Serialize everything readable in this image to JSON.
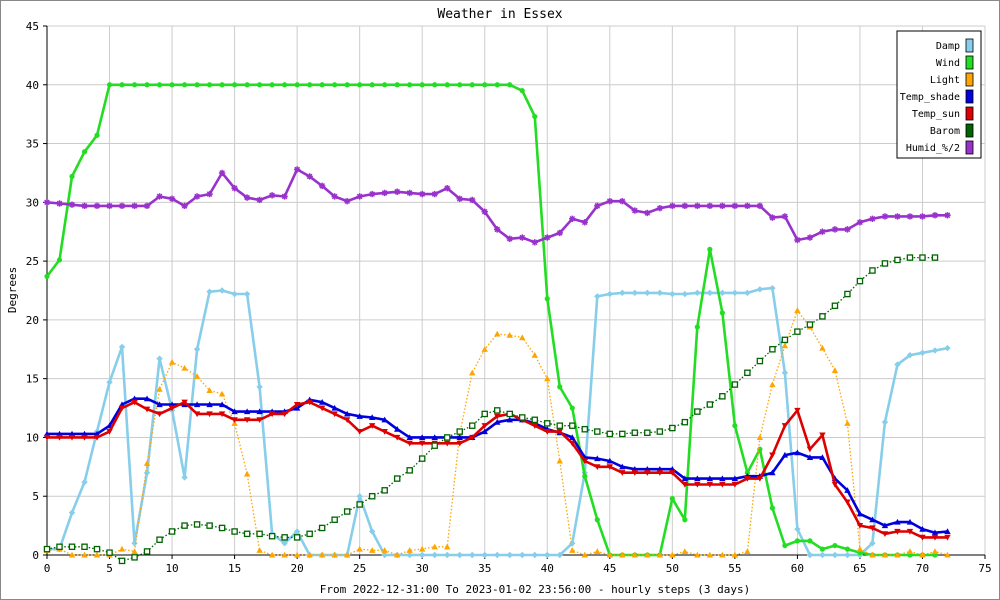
{
  "chart_data": {
    "type": "line",
    "title": "Weather in Essex",
    "xlabel": "From 2022-12-31:00 To 2023-01-02 23:56:00 - hourly steps (3 days)",
    "ylabel": "Degrees",
    "xlim": [
      0,
      75
    ],
    "ylim": [
      0,
      45
    ],
    "x_ticks": [
      0,
      5,
      10,
      15,
      20,
      25,
      30,
      35,
      40,
      45,
      50,
      55,
      60,
      65,
      70,
      75
    ],
    "y_ticks": [
      0,
      5,
      10,
      15,
      20,
      25,
      30,
      35,
      40,
      45
    ],
    "grid": true,
    "legend_position": "top-right",
    "series": [
      {
        "name": "Damp",
        "color": "#87CEEB",
        "marker": "diamond",
        "style": "solid",
        "values": [
          0.5,
          0.5,
          3.6,
          6.2,
          10.5,
          14.7,
          17.7,
          1.0,
          7.0,
          16.7,
          12.3,
          6.6,
          17.5,
          22.4,
          22.5,
          22.2,
          22.2,
          14.3,
          1.8,
          1.0,
          2.0,
          0.0,
          0.0,
          0.0,
          0.0,
          5.0,
          2.0,
          0.0,
          0.0,
          0.0,
          0.0,
          0.0,
          0.0,
          0.0,
          0.0,
          0.0,
          0.0,
          0.0,
          0.0,
          0.0,
          0.0,
          0.0,
          1.0,
          7.0,
          22.0,
          22.2,
          22.3,
          22.3,
          22.3,
          22.3,
          22.2,
          22.2,
          22.3,
          22.3,
          22.3,
          22.3,
          22.3,
          22.6,
          22.7,
          15.5,
          2.2,
          0.0,
          0.0,
          0.0,
          0.0,
          0.0,
          1.0,
          11.3,
          16.2,
          17.0,
          17.2,
          17.4,
          17.6
        ]
      },
      {
        "name": "Wind",
        "color": "#22DD22",
        "marker": "dot",
        "style": "solid",
        "values": [
          23.7,
          25.1,
          32.2,
          34.3,
          35.7,
          40.0,
          40.0,
          40.0,
          40.0,
          40.0,
          40.0,
          40.0,
          40.0,
          40.0,
          40.0,
          40.0,
          40.0,
          40.0,
          40.0,
          40.0,
          40.0,
          40.0,
          40.0,
          40.0,
          40.0,
          40.0,
          40.0,
          40.0,
          40.0,
          40.0,
          40.0,
          40.0,
          40.0,
          40.0,
          40.0,
          40.0,
          40.0,
          40.0,
          39.5,
          37.3,
          21.8,
          14.3,
          12.5,
          6.7,
          3.0,
          0.0,
          0.0,
          0.0,
          0.0,
          0.0,
          4.8,
          3.0,
          19.4,
          26.0,
          20.6,
          11.0,
          7.0,
          9.0,
          4.0,
          0.8,
          1.2,
          1.2,
          0.5,
          0.8,
          0.5,
          0.2,
          0.0,
          0.0,
          0.0,
          0.0,
          0.0,
          0.0
        ]
      },
      {
        "name": "Light",
        "color": "#FFA500",
        "marker": "triangle",
        "style": "dotted",
        "values": [
          0.4,
          0.5,
          0.0,
          0.0,
          0.0,
          0.0,
          0.5,
          0.3,
          7.8,
          14.1,
          16.4,
          15.9,
          15.2,
          14.0,
          13.7,
          11.2,
          6.9,
          0.4,
          0.0,
          0.0,
          0.0,
          0.0,
          0.0,
          0.0,
          0.0,
          0.5,
          0.4,
          0.4,
          0.0,
          0.4,
          0.5,
          0.7,
          0.7,
          10.3,
          15.5,
          17.5,
          18.8,
          18.7,
          18.5,
          17.0,
          15.0,
          8.0,
          0.4,
          0.0,
          0.3,
          0.0,
          0.0,
          0.0,
          0.0,
          0.0,
          0.0,
          0.3,
          0.0,
          0.0,
          0.0,
          0.0,
          0.3,
          10.0,
          14.5,
          17.8,
          20.8,
          19.4,
          17.6,
          15.7,
          11.2,
          0.5,
          0.0,
          0.0,
          0.0,
          0.3,
          0.0,
          0.3,
          0.0
        ]
      },
      {
        "name": "Temp_shade",
        "color": "#0000DD",
        "marker": "triangle",
        "style": "solid",
        "values": [
          10.3,
          10.3,
          10.3,
          10.3,
          10.3,
          11.0,
          12.8,
          13.3,
          13.3,
          12.8,
          12.8,
          12.8,
          12.8,
          12.8,
          12.8,
          12.2,
          12.2,
          12.2,
          12.2,
          12.2,
          12.5,
          13.2,
          13.0,
          12.5,
          12.0,
          11.8,
          11.7,
          11.5,
          10.7,
          10.0,
          10.0,
          10.0,
          10.0,
          10.0,
          10.0,
          10.5,
          11.3,
          11.5,
          11.5,
          11.2,
          10.7,
          10.4,
          10.0,
          8.3,
          8.2,
          8.0,
          7.5,
          7.3,
          7.3,
          7.3,
          7.3,
          6.5,
          6.5,
          6.5,
          6.5,
          6.5,
          6.7,
          6.7,
          7.0,
          8.5,
          8.7,
          8.3,
          8.3,
          6.5,
          5.5,
          3.5,
          3.0,
          2.5,
          2.8,
          2.8,
          2.2,
          1.9,
          2.0
        ]
      },
      {
        "name": "Temp_sun",
        "color": "#DD0000",
        "marker": "triangle-down",
        "style": "solid",
        "values": [
          10.0,
          10.0,
          10.0,
          10.0,
          10.0,
          10.5,
          12.5,
          13.0,
          12.4,
          12.0,
          12.5,
          13.0,
          12.0,
          12.0,
          12.0,
          11.5,
          11.5,
          11.5,
          12.0,
          12.0,
          12.8,
          13.0,
          12.5,
          12.0,
          11.5,
          10.5,
          11.0,
          10.5,
          10.0,
          9.5,
          9.5,
          9.5,
          9.5,
          9.5,
          10.0,
          11.0,
          11.8,
          12.0,
          11.5,
          11.0,
          10.5,
          10.5,
          9.5,
          8.0,
          7.5,
          7.5,
          7.0,
          7.0,
          7.0,
          7.0,
          7.0,
          6.0,
          6.0,
          6.0,
          6.0,
          6.0,
          6.5,
          6.5,
          8.5,
          11.0,
          12.3,
          9.0,
          10.2,
          6.0,
          4.5,
          2.5,
          2.3,
          1.8,
          2.0,
          2.0,
          1.5,
          1.5,
          1.5
        ]
      },
      {
        "name": "Barom",
        "color": "#006400",
        "marker": "square",
        "style": "dotted",
        "values": [
          0.5,
          0.7,
          0.7,
          0.7,
          0.5,
          0.2,
          -0.5,
          -0.2,
          0.3,
          1.3,
          2.0,
          2.5,
          2.6,
          2.5,
          2.3,
          2.0,
          1.8,
          1.8,
          1.6,
          1.5,
          1.5,
          1.8,
          2.3,
          3.0,
          3.7,
          4.3,
          5.0,
          5.5,
          6.5,
          7.2,
          8.2,
          9.3,
          10.0,
          10.5,
          11.0,
          12.0,
          12.3,
          12.0,
          11.7,
          11.5,
          11.2,
          11.0,
          11.0,
          10.7,
          10.5,
          10.3,
          10.3,
          10.4,
          10.4,
          10.5,
          10.8,
          11.3,
          12.2,
          12.8,
          13.5,
          14.5,
          15.5,
          16.5,
          17.5,
          18.3,
          19.0,
          19.6,
          20.3,
          21.2,
          22.2,
          23.3,
          24.2,
          24.8,
          25.1,
          25.3,
          25.3,
          25.3
        ]
      },
      {
        "name": "Humid_%/2",
        "color": "#9932CC",
        "marker": "star",
        "style": "solid",
        "values": [
          30.0,
          29.9,
          29.8,
          29.7,
          29.7,
          29.7,
          29.7,
          29.7,
          29.7,
          30.5,
          30.3,
          29.7,
          30.5,
          30.7,
          32.5,
          31.2,
          30.4,
          30.2,
          30.6,
          30.5,
          32.8,
          32.2,
          31.4,
          30.5,
          30.1,
          30.5,
          30.7,
          30.8,
          30.9,
          30.8,
          30.7,
          30.7,
          31.2,
          30.3,
          30.2,
          29.2,
          27.7,
          26.9,
          27.0,
          26.6,
          27.0,
          27.4,
          28.6,
          28.3,
          29.7,
          30.1,
          30.1,
          29.3,
          29.1,
          29.5,
          29.7,
          29.7,
          29.7,
          29.7,
          29.7,
          29.7,
          29.7,
          29.7,
          28.7,
          28.8,
          26.8,
          27.0,
          27.5,
          27.7,
          27.7,
          28.3,
          28.6,
          28.8,
          28.8,
          28.8,
          28.8,
          28.9,
          28.9
        ]
      }
    ]
  }
}
